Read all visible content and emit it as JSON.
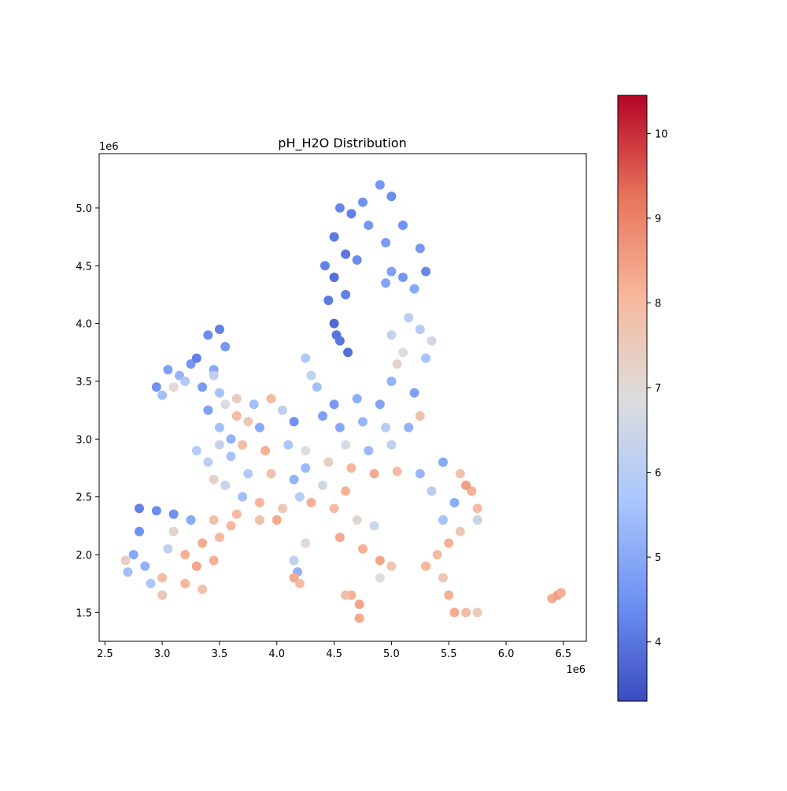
{
  "chart_data": {
    "type": "scatter",
    "title": "pH_H2O Distribution",
    "xlabel": "",
    "ylabel": "",
    "x_offset_label": "1e6",
    "y_offset_label": "1e6",
    "xlim": [
      2.45,
      6.7
    ],
    "ylim": [
      1.25,
      5.47
    ],
    "xticks": [
      2.5,
      3.0,
      3.5,
      4.0,
      4.5,
      5.0,
      5.5,
      6.0,
      6.5
    ],
    "xtick_labels": [
      "2.5",
      "3.0",
      "3.5",
      "4.0",
      "4.5",
      "5.0",
      "5.5",
      "6.0",
      "6.5"
    ],
    "yticks": [
      1.5,
      2.0,
      2.5,
      3.0,
      3.5,
      4.0,
      4.5,
      5.0
    ],
    "ytick_labels": [
      "1.5",
      "2.0",
      "2.5",
      "3.0",
      "3.5",
      "4.0",
      "4.5",
      "5.0"
    ],
    "grid": false,
    "colormap": "coolwarm",
    "colorbar": {
      "range": [
        3.3,
        10.45
      ],
      "ticks": [
        4,
        5,
        6,
        7,
        8,
        9,
        10
      ],
      "tick_labels": [
        "4",
        "5",
        "6",
        "7",
        "8",
        "9",
        "10"
      ],
      "colors": [
        "#3b4cc0",
        "#6f92f3",
        "#aac7fd",
        "#dddddd",
        "#f7b89c",
        "#e7745b",
        "#b40426"
      ]
    },
    "points": [
      [
        4.55,
        5.0,
        4.3
      ],
      [
        4.65,
        4.95,
        4.2
      ],
      [
        4.75,
        5.05,
        4.5
      ],
      [
        4.9,
        5.2,
        4.6
      ],
      [
        5.0,
        5.1,
        4.4
      ],
      [
        4.5,
        4.75,
        4.1
      ],
      [
        4.6,
        4.6,
        4.0
      ],
      [
        4.5,
        4.4,
        3.9
      ],
      [
        4.45,
        4.2,
        4.1
      ],
      [
        4.5,
        4.0,
        3.8
      ],
      [
        4.55,
        3.85,
        4.0
      ],
      [
        4.6,
        4.25,
        4.2
      ],
      [
        4.7,
        4.55,
        4.4
      ],
      [
        4.8,
        4.85,
        4.6
      ],
      [
        4.95,
        4.7,
        4.7
      ],
      [
        5.1,
        4.85,
        4.5
      ],
      [
        5.25,
        4.65,
        4.6
      ],
      [
        5.3,
        4.45,
        4.3
      ],
      [
        5.1,
        4.4,
        4.6
      ],
      [
        5.0,
        4.45,
        4.8
      ],
      [
        5.2,
        4.3,
        5.0
      ],
      [
        4.95,
        4.35,
        4.9
      ],
      [
        4.42,
        4.5,
        4.2
      ],
      [
        4.62,
        3.75,
        3.9
      ],
      [
        4.52,
        3.9,
        4.0
      ],
      [
        5.0,
        3.9,
        6.3
      ],
      [
        5.1,
        3.75,
        6.8
      ],
      [
        5.25,
        3.95,
        5.9
      ],
      [
        5.35,
        3.85,
        6.6
      ],
      [
        5.15,
        4.05,
        6.0
      ],
      [
        5.05,
        3.65,
        7.2
      ],
      [
        5.3,
        3.7,
        5.6
      ],
      [
        5.0,
        3.5,
        5.2
      ],
      [
        5.2,
        3.4,
        4.8
      ],
      [
        4.9,
        3.3,
        4.9
      ],
      [
        4.7,
        3.35,
        5.1
      ],
      [
        4.5,
        3.3,
        4.7
      ],
      [
        4.35,
        3.45,
        5.5
      ],
      [
        4.25,
        3.7,
        5.8
      ],
      [
        4.3,
        3.55,
        6.3
      ],
      [
        4.4,
        3.2,
        4.8
      ],
      [
        4.55,
        3.1,
        5.0
      ],
      [
        4.75,
        3.15,
        5.3
      ],
      [
        4.95,
        3.1,
        6.0
      ],
      [
        5.15,
        3.1,
        5.2
      ],
      [
        5.25,
        3.2,
        7.8
      ],
      [
        4.6,
        2.95,
        6.7
      ],
      [
        4.8,
        2.9,
        5.4
      ],
      [
        5.0,
        2.95,
        6.2
      ],
      [
        4.45,
        2.8,
        7.4
      ],
      [
        4.65,
        2.75,
        8.1
      ],
      [
        4.85,
        2.7,
        8.3
      ],
      [
        5.05,
        2.72,
        7.9
      ],
      [
        4.4,
        2.6,
        6.6
      ],
      [
        4.6,
        2.55,
        8.2
      ],
      [
        4.5,
        2.4,
        8.0
      ],
      [
        4.7,
        2.3,
        7.1
      ],
      [
        4.55,
        2.15,
        8.3
      ],
      [
        4.75,
        2.05,
        8.2
      ],
      [
        4.9,
        1.95,
        8.4
      ],
      [
        5.0,
        1.9,
        7.6
      ],
      [
        4.85,
        2.25,
        6.5
      ],
      [
        4.9,
        1.8,
        6.9
      ],
      [
        4.65,
        1.65,
        8.2
      ],
      [
        4.72,
        1.57,
        8.4
      ],
      [
        4.6,
        1.65,
        7.9
      ],
      [
        4.72,
        1.45,
        8.3
      ],
      [
        5.45,
        2.8,
        5.0
      ],
      [
        5.6,
        2.7,
        7.8
      ],
      [
        5.7,
        2.55,
        8.2
      ],
      [
        5.75,
        2.4,
        8.0
      ],
      [
        5.55,
        2.45,
        5.1
      ],
      [
        5.45,
        2.3,
        5.6
      ],
      [
        5.6,
        2.2,
        7.6
      ],
      [
        5.5,
        2.1,
        8.2
      ],
      [
        5.35,
        2.55,
        6.0
      ],
      [
        5.25,
        2.7,
        5.3
      ],
      [
        5.4,
        2.0,
        7.9
      ],
      [
        5.3,
        1.9,
        8.1
      ],
      [
        5.45,
        1.8,
        7.6
      ],
      [
        5.5,
        1.65,
        8.2
      ],
      [
        5.65,
        1.5,
        7.9
      ],
      [
        5.75,
        1.5,
        7.5
      ],
      [
        5.55,
        1.5,
        8.3
      ],
      [
        5.75,
        2.3,
        6.4
      ],
      [
        5.65,
        2.6,
        8.5
      ],
      [
        6.4,
        1.62,
        8.3
      ],
      [
        6.45,
        1.65,
        8.5
      ],
      [
        6.48,
        1.67,
        8.2
      ],
      [
        3.8,
        3.3,
        5.5
      ],
      [
        3.95,
        3.35,
        8.0
      ],
      [
        4.05,
        3.25,
        6.2
      ],
      [
        4.15,
        3.15,
        4.5
      ],
      [
        3.85,
        3.1,
        5.0
      ],
      [
        3.7,
        2.95,
        7.9
      ],
      [
        3.9,
        2.9,
        8.2
      ],
      [
        4.1,
        2.95,
        5.7
      ],
      [
        4.25,
        2.9,
        6.8
      ],
      [
        3.6,
        2.85,
        5.6
      ],
      [
        3.75,
        2.7,
        5.8
      ],
      [
        3.95,
        2.7,
        7.7
      ],
      [
        4.15,
        2.65,
        5.2
      ],
      [
        3.55,
        2.6,
        6.4
      ],
      [
        3.7,
        2.5,
        5.5
      ],
      [
        3.85,
        2.45,
        8.1
      ],
      [
        4.05,
        2.4,
        7.6
      ],
      [
        4.2,
        2.5,
        6.0
      ],
      [
        3.65,
        2.35,
        8.0
      ],
      [
        3.85,
        2.3,
        7.8
      ],
      [
        4.0,
        2.3,
        8.3
      ],
      [
        4.3,
        2.45,
        8.2
      ],
      [
        4.25,
        2.75,
        5.4
      ],
      [
        3.4,
        2.8,
        6.1
      ],
      [
        3.3,
        2.9,
        5.9
      ],
      [
        3.5,
        2.95,
        6.3
      ],
      [
        3.45,
        2.65,
        7.2
      ],
      [
        3.6,
        3.0,
        5.2
      ],
      [
        3.75,
        3.15,
        7.6
      ],
      [
        2.8,
        2.4,
        4.2
      ],
      [
        2.95,
        2.38,
        4.4
      ],
      [
        3.1,
        2.35,
        4.5
      ],
      [
        3.25,
        2.3,
        5.0
      ],
      [
        3.45,
        2.3,
        7.8
      ],
      [
        2.8,
        2.2,
        4.5
      ],
      [
        2.75,
        2.0,
        5.0
      ],
      [
        2.7,
        1.85,
        5.5
      ],
      [
        2.85,
        1.9,
        5.2
      ],
      [
        3.0,
        1.8,
        7.9
      ],
      [
        3.05,
        2.05,
        6.2
      ],
      [
        3.2,
        2.0,
        8.2
      ],
      [
        3.35,
        2.1,
        8.3
      ],
      [
        3.5,
        2.15,
        8.0
      ],
      [
        3.3,
        1.9,
        8.4
      ],
      [
        3.45,
        1.95,
        8.2
      ],
      [
        3.2,
        1.75,
        8.1
      ],
      [
        3.35,
        1.7,
        7.8
      ],
      [
        3.0,
        1.65,
        7.6
      ],
      [
        2.9,
        1.75,
        5.7
      ],
      [
        3.6,
        2.25,
        8.1
      ],
      [
        3.1,
        2.2,
        7.2
      ],
      [
        2.68,
        1.95,
        7.4
      ],
      [
        3.05,
        3.6,
        4.8
      ],
      [
        3.15,
        3.55,
        5.3
      ],
      [
        3.25,
        3.65,
        4.6
      ],
      [
        2.95,
        3.45,
        4.5
      ],
      [
        3.0,
        3.38,
        5.5
      ],
      [
        3.1,
        3.45,
        7.0
      ],
      [
        3.2,
        3.5,
        5.8
      ],
      [
        3.3,
        3.7,
        4.2
      ],
      [
        3.4,
        3.9,
        4.4
      ],
      [
        3.5,
        3.95,
        4.2
      ],
      [
        3.55,
        3.8,
        4.6
      ],
      [
        3.45,
        3.6,
        5.0
      ],
      [
        3.35,
        3.45,
        4.7
      ],
      [
        3.5,
        3.4,
        5.6
      ],
      [
        3.4,
        3.25,
        4.8
      ],
      [
        3.55,
        3.3,
        6.8
      ],
      [
        3.65,
        3.2,
        8.0
      ],
      [
        3.5,
        3.1,
        5.5
      ],
      [
        3.65,
        3.35,
        7.4
      ],
      [
        3.45,
        3.55,
        6.2
      ],
      [
        4.15,
        1.95,
        6.2
      ],
      [
        4.18,
        1.85,
        5.2
      ],
      [
        4.2,
        1.75,
        7.9
      ],
      [
        4.15,
        1.8,
        8.3
      ],
      [
        4.25,
        2.1,
        7.0
      ]
    ]
  }
}
